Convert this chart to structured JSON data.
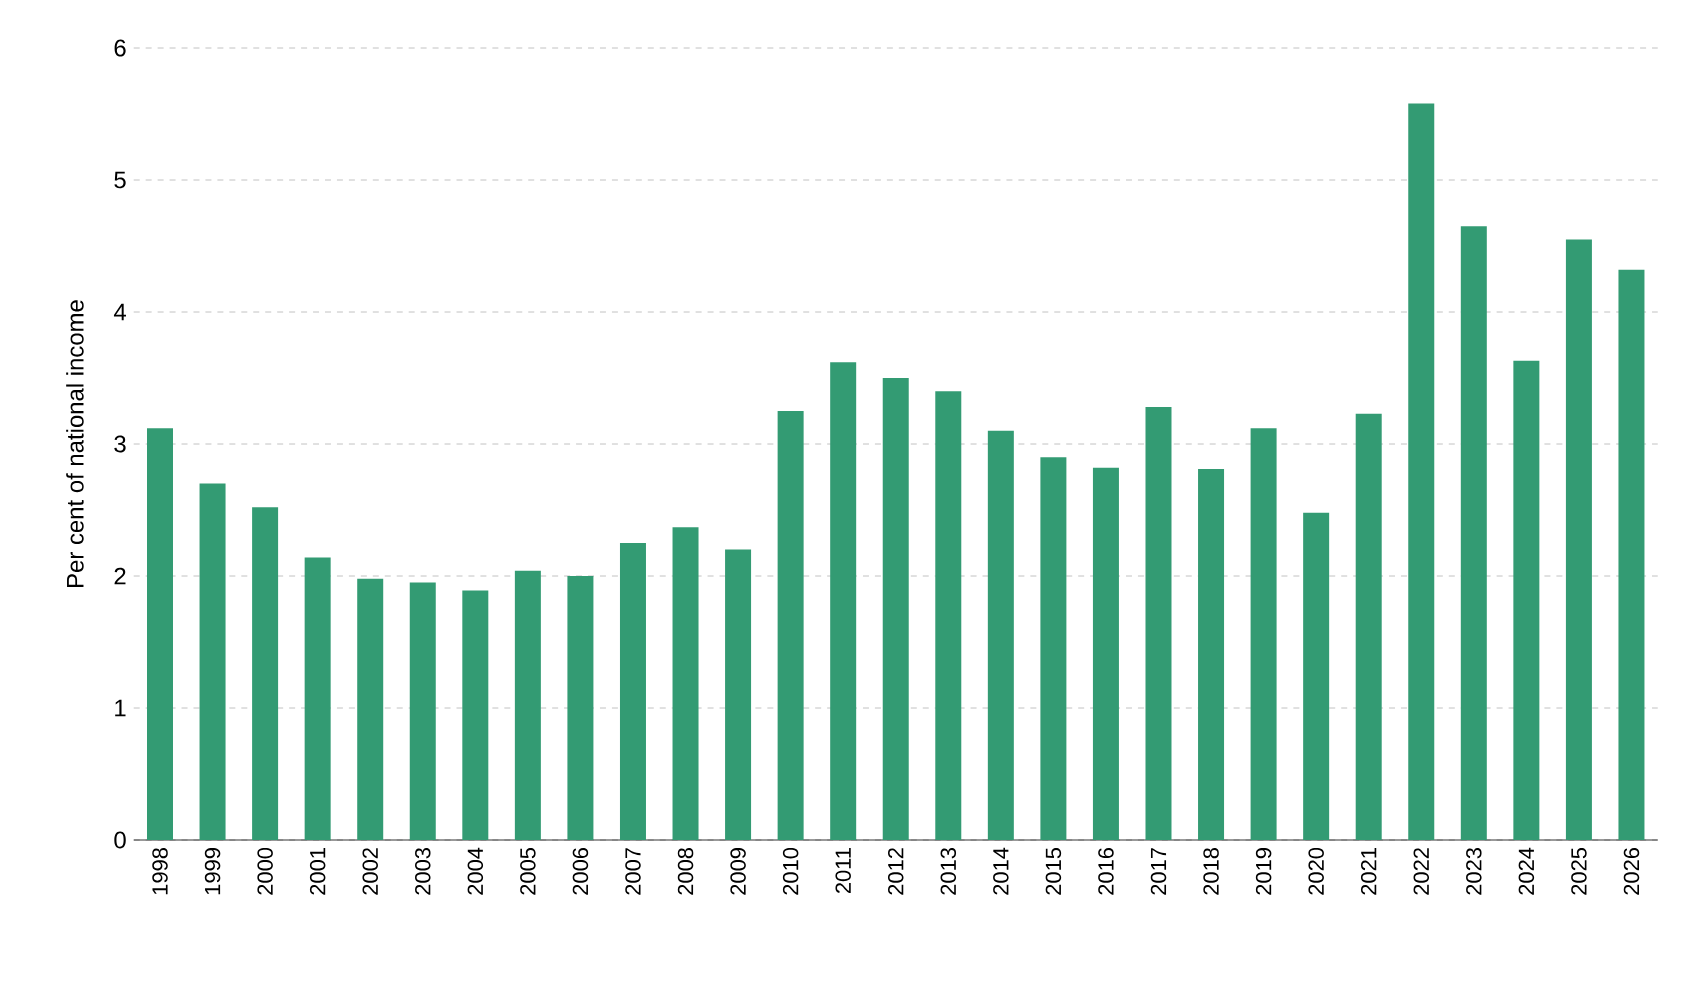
{
  "chart_data": {
    "type": "bar",
    "ylabel": "Per cent of national income",
    "categories": [
      "1998",
      "1999",
      "2000",
      "2001",
      "2002",
      "2003",
      "2004",
      "2005",
      "2006",
      "2007",
      "2008",
      "2009",
      "2010",
      "2011",
      "2012",
      "2013",
      "2014",
      "2015",
      "2016",
      "2017",
      "2018",
      "2019",
      "2020",
      "2021",
      "2022",
      "2023",
      "2024",
      "2025",
      "2026"
    ],
    "values": [
      3.12,
      2.7,
      2.52,
      2.14,
      1.98,
      1.95,
      1.89,
      2.04,
      2.0,
      2.25,
      2.37,
      2.2,
      3.25,
      3.62,
      3.5,
      3.4,
      3.1,
      2.9,
      2.82,
      3.28,
      2.81,
      3.12,
      2.48,
      3.23,
      5.58,
      4.65,
      3.63,
      4.55,
      4.32
    ],
    "color": "#339b73",
    "ylim": [
      0,
      6
    ],
    "yticks": [
      0,
      1,
      2,
      3,
      4,
      5,
      6
    ],
    "grid": "y"
  }
}
